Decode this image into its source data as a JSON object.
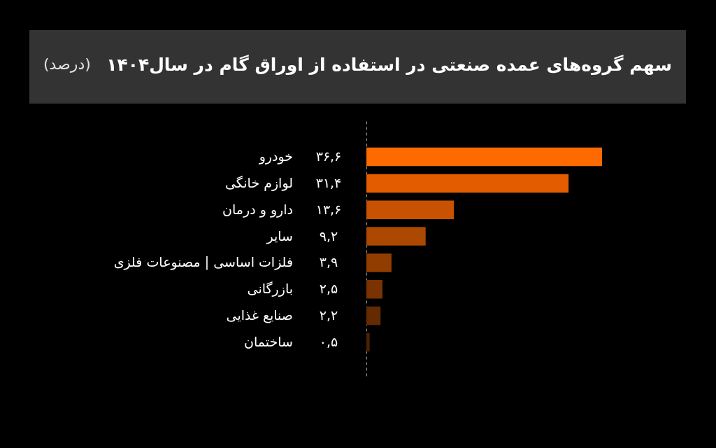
{
  "chart_data": {
    "type": "bar",
    "orientation": "horizontal",
    "title": "سهم گروه‌های عمده صنعتی در استفاده از اوراق گام در سال۱۴۰۴",
    "subtitle": "(درصد)",
    "categories": [
      "خودرو",
      "لوازم خانگی",
      "دارو و درمان",
      "سایر",
      "فلزات اساسی | مصنوعات فلزی",
      "بازرگانی",
      "صنایع غذایی",
      "ساختمان"
    ],
    "values": [
      36.6,
      31.4,
      13.6,
      9.2,
      3.9,
      2.5,
      2.2,
      0.5
    ],
    "value_labels": [
      "۳۶,۶",
      "۳۱,۴",
      "۱۳,۶",
      "۹,۲",
      "۳,۹",
      "۲,۵",
      "۲,۲",
      "۰,۵"
    ],
    "colors": [
      "#ff6a00",
      "#e35d00",
      "#c85200",
      "#ad4800",
      "#923d00",
      "#7a3300",
      "#642a00",
      "#4d2200"
    ]
  }
}
